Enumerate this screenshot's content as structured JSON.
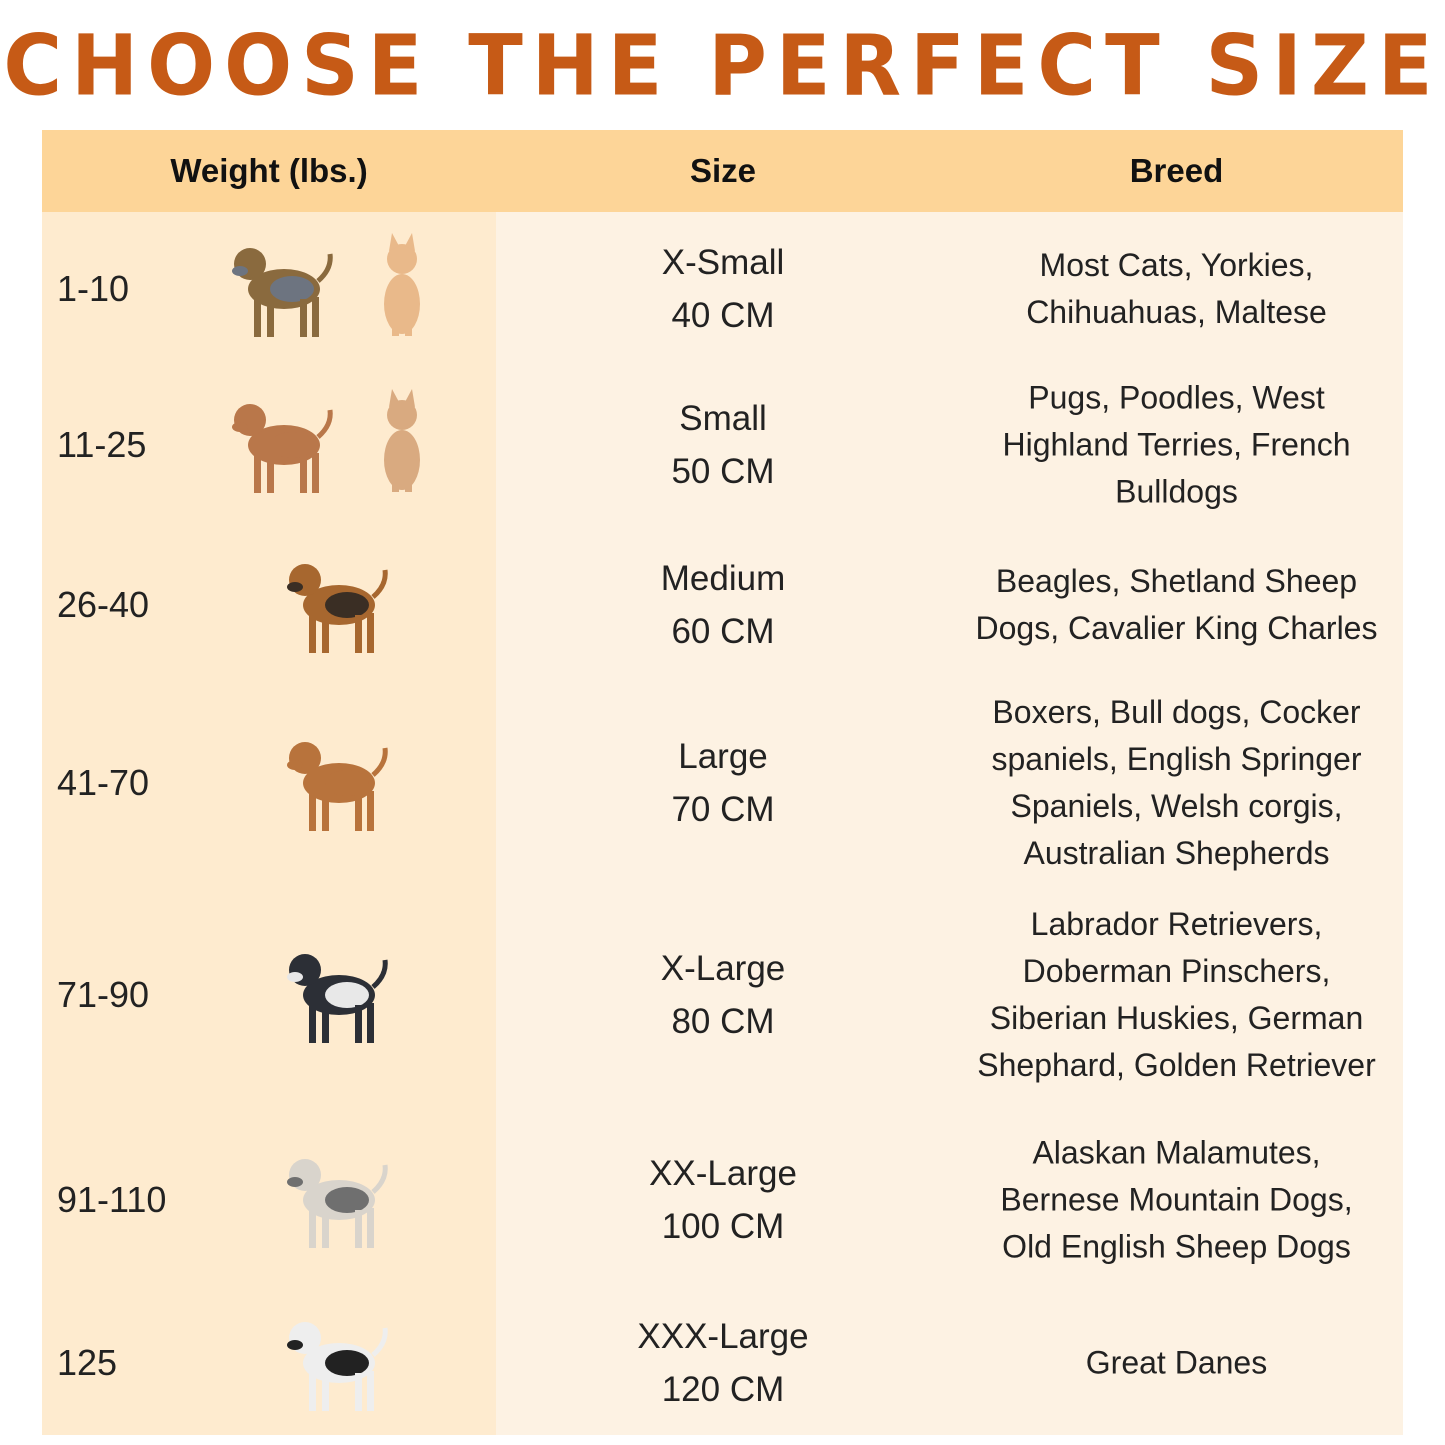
{
  "title": "CHOOSE THE PERFECT SIZE",
  "colors": {
    "title": "#C65A16",
    "header_bg": "#FDD598",
    "weight_col_bg": "#FEEBCF",
    "body_bg": "#FDF2E3"
  },
  "table": {
    "headers": [
      "Weight (lbs.)",
      "Size",
      "Breed"
    ],
    "rows": [
      {
        "weight": "1-10",
        "size": [
          "X-Small",
          "40 CM"
        ],
        "breed": [
          "Most Cats, Yorkies,",
          "Chihuahuas, Maltese"
        ],
        "images": [
          "yorkie-image",
          "kitten-image"
        ]
      },
      {
        "weight": "11-25",
        "size": [
          "Small",
          "50 CM"
        ],
        "breed": [
          "Pugs, Poodles, West",
          "Highland Terries, French",
          "Bulldogs"
        ],
        "images": [
          "poodle-image",
          "cat-image"
        ]
      },
      {
        "weight": "26-40",
        "size": [
          "Medium",
          "60 CM"
        ],
        "breed": [
          "Beagles, Shetland Sheep",
          "Dogs, Cavalier King Charles"
        ],
        "images": [
          "beagle-image"
        ]
      },
      {
        "weight": "41-70",
        "size": [
          "Large",
          "70 CM"
        ],
        "breed": [
          "Boxers, Bull dogs, Cocker",
          "spaniels, English Springer",
          "Spaniels, Welsh corgis,",
          "Australian Shepherds"
        ],
        "images": [
          "boxer-image"
        ]
      },
      {
        "weight": "71-90",
        "size": [
          "X-Large",
          "80 CM"
        ],
        "breed": [
          "Labrador Retrievers,",
          "Doberman Pinschers,",
          "Siberian Huskies, German",
          "Shephard, Golden Retriever"
        ],
        "images": [
          "husky-image"
        ]
      },
      {
        "weight": "91-110",
        "size": [
          "XX-Large",
          "100 CM"
        ],
        "breed": [
          "Alaskan Malamutes,",
          "Bernese Mountain Dogs,",
          "Old English Sheep Dogs"
        ],
        "images": [
          "sheepdog-image"
        ]
      },
      {
        "weight": "125",
        "size": [
          "XXX-Large",
          "120 CM"
        ],
        "breed": [
          "Great Danes"
        ],
        "images": [
          "great-dane-image"
        ]
      }
    ]
  }
}
